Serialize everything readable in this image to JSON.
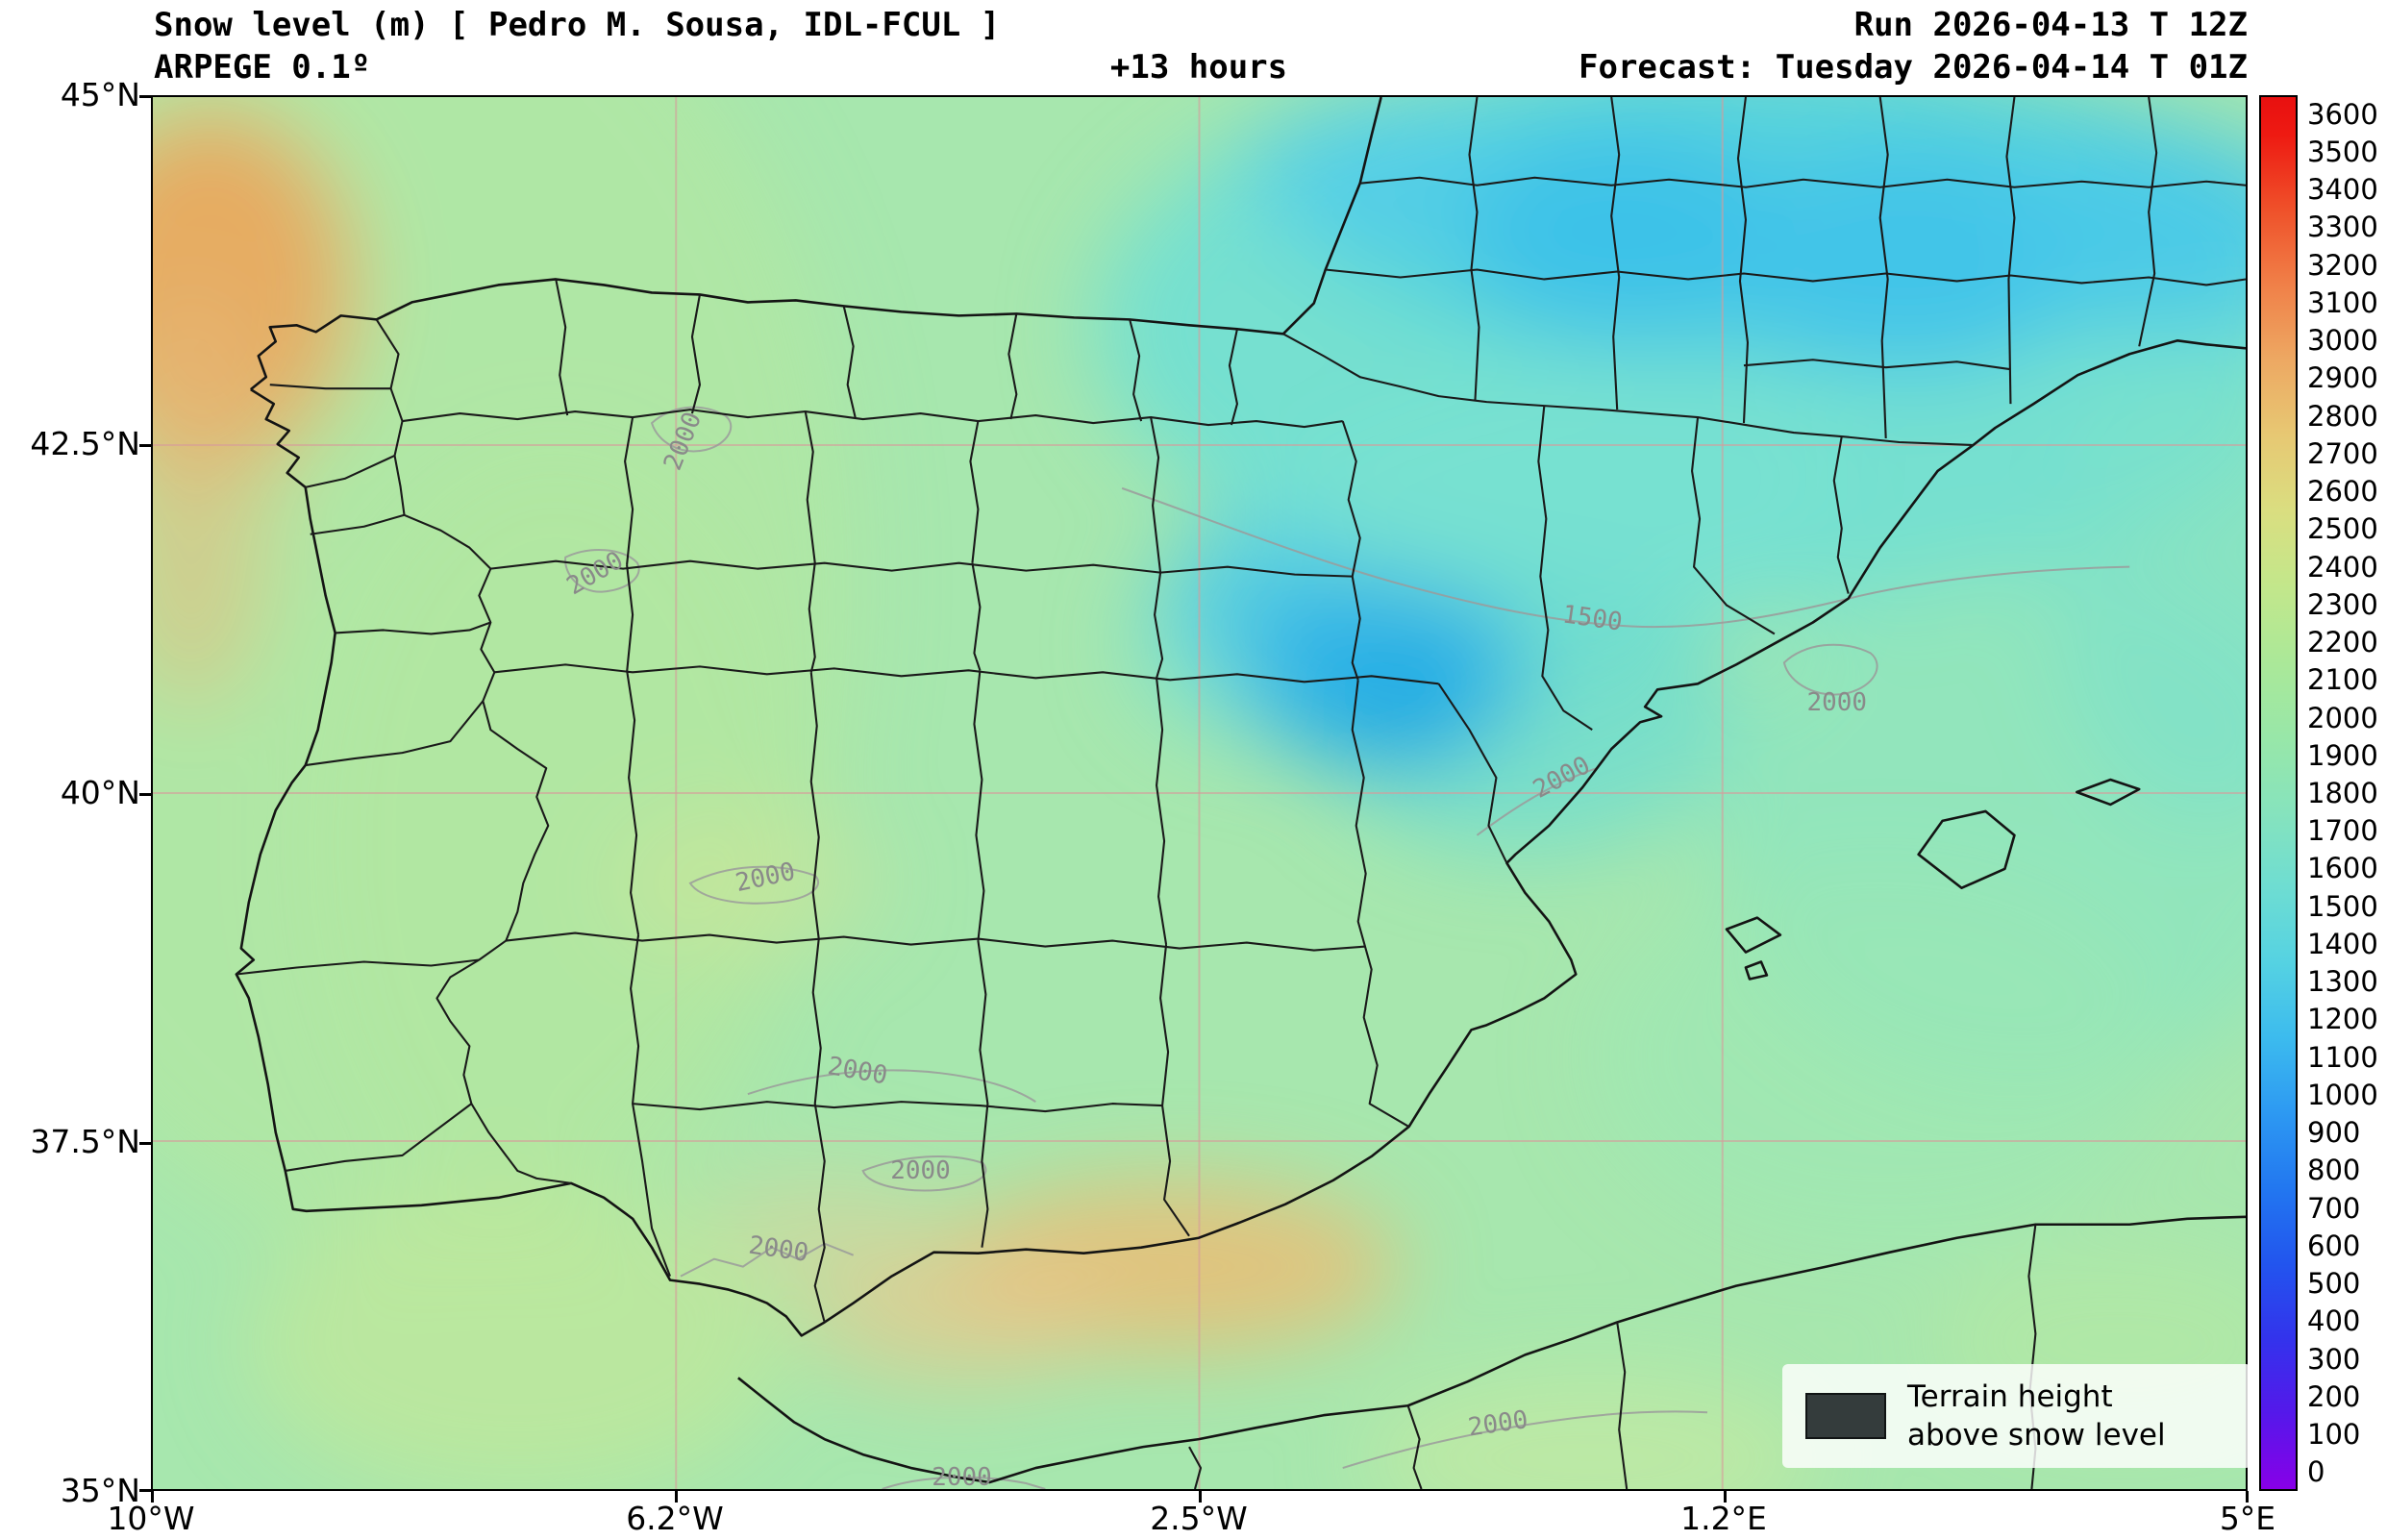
{
  "header": {
    "title": "Snow level (m) [ Pedro M. Sousa, IDL-FCUL ]",
    "model": "ARPEGE 0.1º",
    "lead_time": "+13 hours",
    "run": "Run 2026-04-13 T 12Z",
    "forecast": "Forecast: Tuesday 2026-04-14 T 01Z"
  },
  "axes": {
    "y_ticks": [
      "45°N",
      "42.5°N",
      "40°N",
      "37.5°N",
      "35°N"
    ],
    "x_ticks": [
      "10°W",
      "6.2°W",
      "2.5°W",
      "1.2°E",
      "5°E"
    ]
  },
  "colorbar": {
    "ticks": [
      "3600",
      "3500",
      "3400",
      "3300",
      "3200",
      "3100",
      "3000",
      "2900",
      "2800",
      "2700",
      "2600",
      "2500",
      "2400",
      "2300",
      "2200",
      "2100",
      "2000",
      "1900",
      "1800",
      "1700",
      "1600",
      "1500",
      "1400",
      "1300",
      "1200",
      "1100",
      "1000",
      "900",
      "800",
      "700",
      "600",
      "500",
      "400",
      "300",
      "200",
      "100",
      "0"
    ]
  },
  "legend": {
    "line1": "Terrain height",
    "line2": "above snow level"
  },
  "map": {
    "contour_labels": [
      "2000",
      "2000",
      "1500",
      "2000",
      "2000",
      "2000",
      "2000",
      "2000",
      "2000",
      "2000",
      "2000"
    ]
  }
}
